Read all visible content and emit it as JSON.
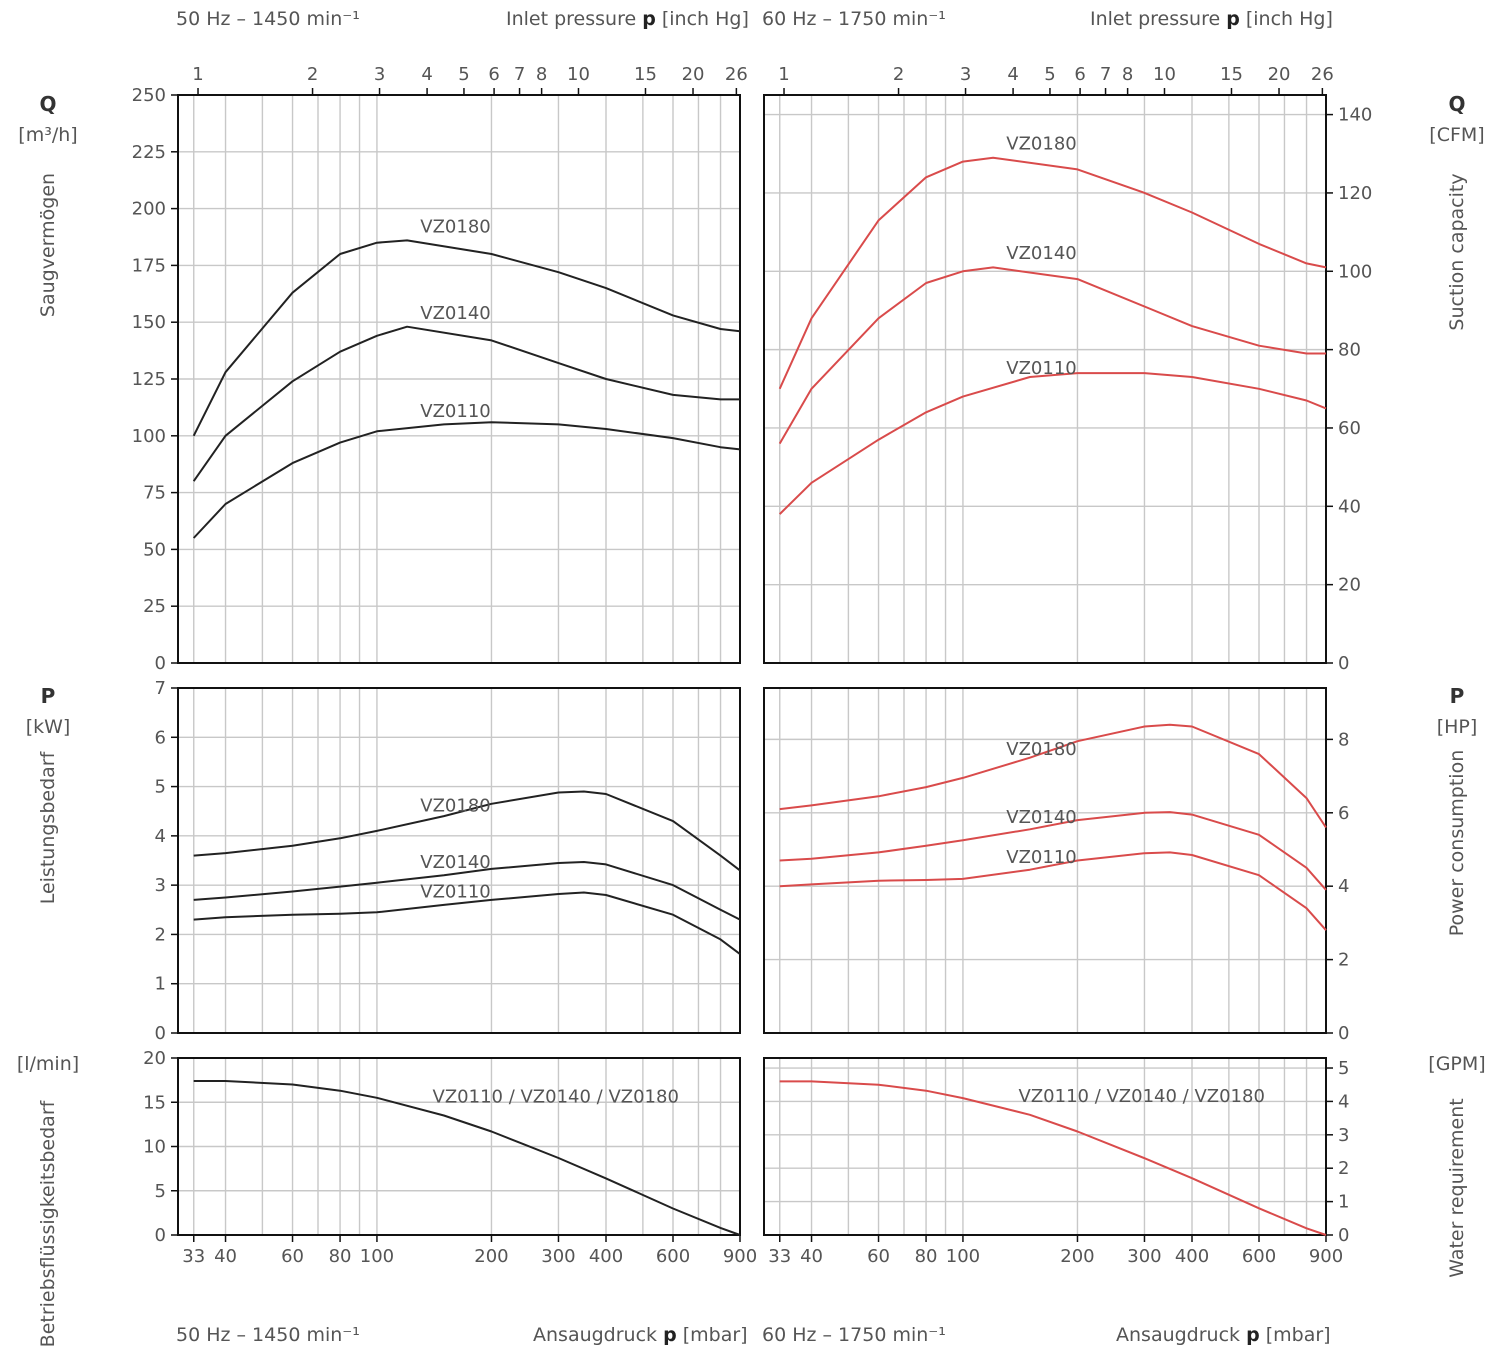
{
  "headers": {
    "left_top_freq": "50 Hz – 1450 min⁻¹",
    "right_top_freq": "60 Hz – 1750 min⁻¹",
    "top_pressure_pre": "Inlet pressure ",
    "top_pressure_sym": "p",
    "top_pressure_unit": " [inch Hg]",
    "left_bottom_freq": "50 Hz – 1450 min⁻¹",
    "right_bottom_freq": "60 Hz – 1750 min⁻¹",
    "bottom_pressure_pre": "Ansaugdruck ",
    "bottom_pressure_sym": "p",
    "bottom_pressure_unit": " [mbar]"
  },
  "left_axes": {
    "q_symbol": "Q",
    "q_unit": "[m³/h]",
    "q_name": "Saugvermögen",
    "p_symbol": "P",
    "p_unit": "[kW]",
    "p_name": "Leistungsbedarf",
    "w_unit": "[l/min]",
    "w_name": "Betriebsflüssigkeitsbedarf"
  },
  "right_axes": {
    "q_symbol": "Q",
    "q_unit": "[CFM]",
    "q_name": "Suction capacity",
    "p_symbol": "P",
    "p_unit": "[HP]",
    "p_name": "Power consumption",
    "w_unit": "[GPM]",
    "w_name": "Water requirement"
  },
  "colors": {
    "hz50": "#222222",
    "hz60": "#d94b4b",
    "grid": "#c8c8c8",
    "frame": "#111111",
    "tick_text": "#555555"
  },
  "chart_data": [
    {
      "type": "line",
      "id": "suction_50hz",
      "x_scale": "log",
      "xlim": [
        30,
        900
      ],
      "xlabel": "Ansaugdruck p [mbar]",
      "ylabel": "Saugvermögen Q [m³/h]",
      "ylim": [
        0,
        250
      ],
      "yticks": [
        0,
        25,
        50,
        75,
        100,
        125,
        150,
        175,
        200,
        225,
        250
      ],
      "x_top_ticks_inHg": [
        1,
        2,
        3,
        4,
        5,
        6,
        7,
        8,
        10,
        15,
        20,
        26
      ],
      "series": [
        {
          "name": "VZ0180",
          "label_at": 130,
          "points": [
            [
              33,
              100
            ],
            [
              40,
              128
            ],
            [
              60,
              163
            ],
            [
              80,
              180
            ],
            [
              100,
              185
            ],
            [
              120,
              186
            ],
            [
              200,
              180
            ],
            [
              300,
              172
            ],
            [
              400,
              165
            ],
            [
              600,
              153
            ],
            [
              800,
              147
            ],
            [
              900,
              146
            ]
          ]
        },
        {
          "name": "VZ0140",
          "label_at": 130,
          "points": [
            [
              33,
              80
            ],
            [
              40,
              100
            ],
            [
              60,
              124
            ],
            [
              80,
              137
            ],
            [
              100,
              144
            ],
            [
              120,
              148
            ],
            [
              200,
              142
            ],
            [
              300,
              132
            ],
            [
              400,
              125
            ],
            [
              600,
              118
            ],
            [
              800,
              116
            ],
            [
              900,
              116
            ]
          ]
        },
        {
          "name": "VZ0110",
          "label_at": 130,
          "points": [
            [
              33,
              55
            ],
            [
              40,
              70
            ],
            [
              60,
              88
            ],
            [
              80,
              97
            ],
            [
              100,
              102
            ],
            [
              150,
              105
            ],
            [
              200,
              106
            ],
            [
              300,
              105
            ],
            [
              400,
              103
            ],
            [
              600,
              99
            ],
            [
              800,
              95
            ],
            [
              900,
              94
            ]
          ]
        }
      ]
    },
    {
      "type": "line",
      "id": "suction_60hz",
      "x_scale": "log",
      "xlim": [
        30,
        900
      ],
      "ylabel": "Suction capacity Q [CFM]",
      "ylim": [
        0,
        145
      ],
      "yticks": [
        0,
        20,
        40,
        60,
        80,
        100,
        120,
        140
      ],
      "x_top_ticks_inHg": [
        1,
        2,
        3,
        4,
        5,
        6,
        7,
        8,
        10,
        15,
        20,
        26
      ],
      "series": [
        {
          "name": "VZ0180",
          "label_at": 130,
          "points": [
            [
              33,
              70
            ],
            [
              40,
              88
            ],
            [
              60,
              113
            ],
            [
              80,
              124
            ],
            [
              100,
              128
            ],
            [
              120,
              129
            ],
            [
              200,
              126
            ],
            [
              300,
              120
            ],
            [
              400,
              115
            ],
            [
              600,
              107
            ],
            [
              800,
              102
            ],
            [
              900,
              101
            ]
          ]
        },
        {
          "name": "VZ0140",
          "label_at": 130,
          "points": [
            [
              33,
              56
            ],
            [
              40,
              70
            ],
            [
              60,
              88
            ],
            [
              80,
              97
            ],
            [
              100,
              100
            ],
            [
              120,
              101
            ],
            [
              200,
              98
            ],
            [
              300,
              91
            ],
            [
              400,
              86
            ],
            [
              600,
              81
            ],
            [
              800,
              79
            ],
            [
              900,
              79
            ]
          ]
        },
        {
          "name": "VZ0110",
          "label_at": 130,
          "points": [
            [
              33,
              38
            ],
            [
              40,
              46
            ],
            [
              60,
              57
            ],
            [
              80,
              64
            ],
            [
              100,
              68
            ],
            [
              150,
              73
            ],
            [
              200,
              74
            ],
            [
              300,
              74
            ],
            [
              400,
              73
            ],
            [
              600,
              70
            ],
            [
              800,
              67
            ],
            [
              900,
              65
            ]
          ]
        }
      ]
    },
    {
      "type": "line",
      "id": "power_50hz",
      "x_scale": "log",
      "xlim": [
        30,
        900
      ],
      "ylabel": "Leistungsbedarf P [kW]",
      "ylim": [
        0,
        7
      ],
      "yticks": [
        0,
        1,
        2,
        3,
        4,
        5,
        6,
        7
      ],
      "series": [
        {
          "name": "VZ0180",
          "label_at": 130,
          "points": [
            [
              33,
              3.6
            ],
            [
              40,
              3.65
            ],
            [
              60,
              3.8
            ],
            [
              80,
              3.95
            ],
            [
              100,
              4.1
            ],
            [
              150,
              4.4
            ],
            [
              200,
              4.65
            ],
            [
              300,
              4.88
            ],
            [
              350,
              4.9
            ],
            [
              400,
              4.85
            ],
            [
              600,
              4.3
            ],
            [
              800,
              3.6
            ],
            [
              900,
              3.3
            ]
          ]
        },
        {
          "name": "VZ0140",
          "label_at": 130,
          "points": [
            [
              33,
              2.7
            ],
            [
              40,
              2.75
            ],
            [
              60,
              2.87
            ],
            [
              80,
              2.97
            ],
            [
              100,
              3.05
            ],
            [
              150,
              3.2
            ],
            [
              200,
              3.33
            ],
            [
              300,
              3.45
            ],
            [
              350,
              3.47
            ],
            [
              400,
              3.42
            ],
            [
              600,
              3.0
            ],
            [
              800,
              2.5
            ],
            [
              900,
              2.3
            ]
          ]
        },
        {
          "name": "VZ0110",
          "label_at": 130,
          "points": [
            [
              33,
              2.3
            ],
            [
              40,
              2.35
            ],
            [
              60,
              2.4
            ],
            [
              80,
              2.42
            ],
            [
              100,
              2.45
            ],
            [
              150,
              2.6
            ],
            [
              200,
              2.7
            ],
            [
              300,
              2.82
            ],
            [
              350,
              2.85
            ],
            [
              400,
              2.8
            ],
            [
              600,
              2.4
            ],
            [
              800,
              1.9
            ],
            [
              900,
              1.6
            ]
          ]
        }
      ]
    },
    {
      "type": "line",
      "id": "power_60hz",
      "x_scale": "log",
      "xlim": [
        30,
        900
      ],
      "ylabel": "Power consumption P [HP]",
      "ylim": [
        0,
        9.4
      ],
      "yticks": [
        0,
        2,
        4,
        6,
        8
      ],
      "series": [
        {
          "name": "VZ0180",
          "label_at": 130,
          "points": [
            [
              33,
              6.1
            ],
            [
              40,
              6.2
            ],
            [
              60,
              6.45
            ],
            [
              80,
              6.7
            ],
            [
              100,
              6.95
            ],
            [
              150,
              7.5
            ],
            [
              200,
              7.95
            ],
            [
              300,
              8.35
            ],
            [
              350,
              8.4
            ],
            [
              400,
              8.35
            ],
            [
              600,
              7.6
            ],
            [
              800,
              6.4
            ],
            [
              900,
              5.6
            ]
          ]
        },
        {
          "name": "VZ0140",
          "label_at": 130,
          "points": [
            [
              33,
              4.7
            ],
            [
              40,
              4.75
            ],
            [
              60,
              4.92
            ],
            [
              80,
              5.1
            ],
            [
              100,
              5.25
            ],
            [
              150,
              5.55
            ],
            [
              200,
              5.8
            ],
            [
              300,
              6.0
            ],
            [
              350,
              6.02
            ],
            [
              400,
              5.95
            ],
            [
              600,
              5.4
            ],
            [
              800,
              4.5
            ],
            [
              900,
              3.9
            ]
          ]
        },
        {
          "name": "VZ0110",
          "label_at": 130,
          "points": [
            [
              33,
              4.0
            ],
            [
              40,
              4.05
            ],
            [
              60,
              4.15
            ],
            [
              80,
              4.17
            ],
            [
              100,
              4.2
            ],
            [
              150,
              4.45
            ],
            [
              200,
              4.7
            ],
            [
              300,
              4.9
            ],
            [
              350,
              4.92
            ],
            [
              400,
              4.85
            ],
            [
              600,
              4.3
            ],
            [
              800,
              3.4
            ],
            [
              900,
              2.8
            ]
          ]
        }
      ]
    },
    {
      "type": "line",
      "id": "water_50hz",
      "x_scale": "log",
      "xlim": [
        30,
        900
      ],
      "ylabel": "Betriebsflüssigkeitsbedarf [l/min]",
      "ylim": [
        0,
        20
      ],
      "yticks": [
        0,
        5,
        10,
        15,
        20
      ],
      "xticks_mbar": [
        33,
        40,
        60,
        80,
        100,
        200,
        300,
        400,
        600,
        900
      ],
      "series": [
        {
          "name": "VZ0110 / VZ0140 / VZ0180",
          "label_at": 140,
          "points": [
            [
              33,
              17.4
            ],
            [
              40,
              17.4
            ],
            [
              60,
              17.0
            ],
            [
              80,
              16.3
            ],
            [
              100,
              15.5
            ],
            [
              150,
              13.5
            ],
            [
              200,
              11.7
            ],
            [
              300,
              8.7
            ],
            [
              400,
              6.4
            ],
            [
              600,
              3.0
            ],
            [
              800,
              0.8
            ],
            [
              900,
              0.0
            ]
          ]
        }
      ]
    },
    {
      "type": "line",
      "id": "water_60hz",
      "x_scale": "log",
      "xlim": [
        30,
        900
      ],
      "ylabel": "Water requirement [GPM]",
      "ylim": [
        0,
        5.3
      ],
      "yticks": [
        0,
        1,
        2,
        3,
        4,
        5
      ],
      "xticks_mbar": [
        33,
        40,
        60,
        80,
        100,
        200,
        300,
        400,
        600,
        900
      ],
      "series": [
        {
          "name": "VZ0110 / VZ0140 / VZ0180",
          "label_at": 140,
          "points": [
            [
              33,
              4.6
            ],
            [
              40,
              4.6
            ],
            [
              60,
              4.5
            ],
            [
              80,
              4.32
            ],
            [
              100,
              4.1
            ],
            [
              150,
              3.6
            ],
            [
              200,
              3.1
            ],
            [
              300,
              2.3
            ],
            [
              400,
              1.7
            ],
            [
              600,
              0.8
            ],
            [
              800,
              0.2
            ],
            [
              900,
              0.0
            ]
          ]
        }
      ]
    }
  ]
}
